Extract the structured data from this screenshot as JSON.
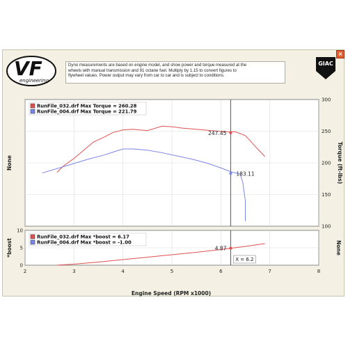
{
  "disclaimer": "Dyno measurements are based on engine model, and show power and torque measured at the\nwheels with manual transmission and 91 octane fuel. Multiply by 1.15 to convert figures to\nflywheel values. Power output may vary from car to car and is subject to conditions.",
  "logo": {
    "text": "VF",
    "subtext": "engineering"
  },
  "giac_logo": "GIAC",
  "colors": {
    "red": "#e05050",
    "blue": "#7a86e6",
    "frame": "#f4f1e4"
  },
  "chart_data": [
    {
      "type": "line",
      "xlabel": "Engine Speed (RPM x1000)",
      "ylabel_left": "None",
      "ylabel_right": "Torque (ft-lbs)",
      "xlim": [
        2,
        8
      ],
      "ylim": [
        100,
        300
      ],
      "xticks": [
        "2",
        "3",
        "4",
        "5",
        "6",
        "7",
        "8"
      ],
      "yticks": [
        "100",
        "150",
        "200",
        "250",
        "300"
      ],
      "legend": [
        "RunFile_032.drf Max Torque = 260.28",
        "RunFile_004.drf Max Torque = 221.79"
      ],
      "cursor_x": 6.2,
      "annotations": [
        {
          "text": "247.45",
          "x": 6.2,
          "y": 247.45,
          "series": 0
        },
        {
          "text": "183.11",
          "x": 6.2,
          "y": 183.11,
          "series": 1
        }
      ],
      "series": [
        {
          "name": "RunFile_032.drf",
          "color": "red",
          "x": [
            2.65,
            2.8,
            3.0,
            3.2,
            3.4,
            3.6,
            3.8,
            4.0,
            4.2,
            4.5,
            4.8,
            5.0,
            5.2,
            5.5,
            5.8,
            6.1,
            6.3,
            6.5,
            6.6,
            6.7,
            6.8,
            6.9
          ],
          "y": [
            185,
            196,
            207,
            220,
            233,
            240,
            248,
            252,
            253,
            251,
            258,
            257,
            255,
            253,
            251,
            249,
            249,
            243,
            235,
            226,
            218,
            210
          ]
        },
        {
          "name": "RunFile_004.drf",
          "color": "blue",
          "x": [
            2.35,
            2.7,
            3.0,
            3.3,
            3.6,
            3.8,
            4.0,
            4.2,
            4.5,
            4.8,
            5.1,
            5.4,
            5.7,
            6.0,
            6.2,
            6.4,
            6.45,
            6.5,
            6.5
          ],
          "y": [
            184,
            192,
            199,
            206,
            212,
            217,
            222,
            222,
            220,
            216,
            211,
            206,
            200,
            192,
            186,
            182,
            168,
            140,
            108
          ]
        }
      ]
    },
    {
      "type": "line",
      "ylabel_left": "*boost",
      "ylabel_right": "None",
      "xlim": [
        2,
        8
      ],
      "ylim": [
        0,
        10
      ],
      "yticks": [
        "0",
        "5",
        "10"
      ],
      "legend": [
        "RunFile_032.drf Max *boost = 6.17",
        "RunFile_004.drf Max *boost = -1.00"
      ],
      "cursor_label": "X = 6.2",
      "annotations": [
        {
          "text": "4.87",
          "x": 6.2,
          "y": 4.87,
          "series": 0
        }
      ],
      "series": [
        {
          "name": "RunFile_032.drf",
          "color": "red",
          "x": [
            2.65,
            3.0,
            3.5,
            4.0,
            4.5,
            5.0,
            5.5,
            6.0,
            6.5,
            6.9
          ],
          "y": [
            0.0,
            0.3,
            0.9,
            1.6,
            2.3,
            3.0,
            3.7,
            4.5,
            5.4,
            6.2
          ]
        }
      ]
    }
  ]
}
